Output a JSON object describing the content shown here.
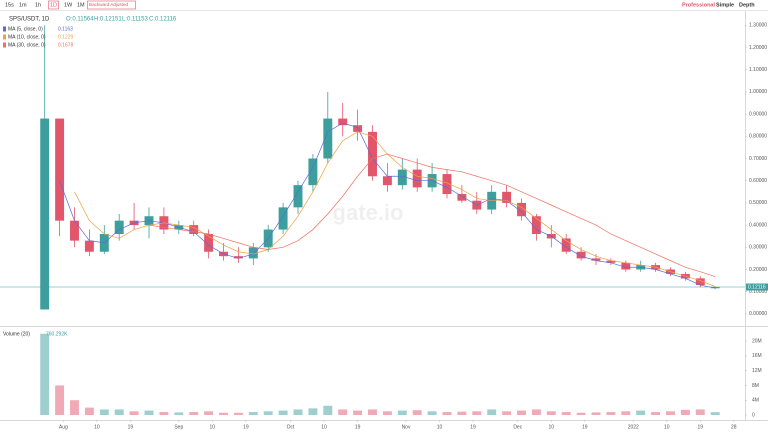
{
  "toolbar": {
    "intervals": [
      "15s",
      "1m",
      "1h",
      "1D",
      "1W",
      "1M"
    ],
    "adjust": "Backward Adjusted",
    "modes": [
      "Professional",
      "Simple",
      "Depth"
    ]
  },
  "chart_data": {
    "type": "candlestick",
    "title": "SPS/USDT, 1D",
    "ohlc_labels": [
      "O:0.11564",
      "H:0.12151",
      "L:0.11153",
      "C:0.12116"
    ],
    "watermark": "gate.io",
    "x": [
      0,
      4,
      8,
      12,
      16,
      20,
      24,
      28,
      32,
      36,
      40,
      44,
      48,
      52,
      56,
      60,
      64,
      68,
      72,
      76,
      80,
      84,
      88,
      92,
      96,
      100,
      104,
      108,
      112,
      116,
      120,
      124,
      128,
      132,
      136,
      140,
      144,
      148,
      152,
      156,
      160,
      164,
      168,
      172,
      176,
      180
    ],
    "open": [
      0.02,
      0.88,
      0.42,
      0.33,
      0.28,
      0.36,
      0.42,
      0.4,
      0.44,
      0.38,
      0.4,
      0.36,
      0.28,
      0.26,
      0.25,
      0.3,
      0.38,
      0.48,
      0.58,
      0.7,
      0.88,
      0.85,
      0.82,
      0.62,
      0.58,
      0.65,
      0.57,
      0.63,
      0.54,
      0.51,
      0.47,
      0.55,
      0.5,
      0.44,
      0.36,
      0.34,
      0.28,
      0.25,
      0.24,
      0.23,
      0.2,
      0.22,
      0.2,
      0.18,
      0.16,
      0.11564
    ],
    "high": [
      1.3,
      0.88,
      0.48,
      0.38,
      0.4,
      0.45,
      0.5,
      0.48,
      0.48,
      0.42,
      0.42,
      0.38,
      0.32,
      0.3,
      0.32,
      0.4,
      0.5,
      0.6,
      0.72,
      1.0,
      0.95,
      0.92,
      0.85,
      0.68,
      0.7,
      0.7,
      0.68,
      0.65,
      0.58,
      0.55,
      0.58,
      0.58,
      0.52,
      0.45,
      0.4,
      0.36,
      0.3,
      0.27,
      0.25,
      0.24,
      0.24,
      0.23,
      0.21,
      0.19,
      0.17,
      0.12151
    ],
    "low": [
      0.02,
      0.35,
      0.3,
      0.26,
      0.27,
      0.33,
      0.38,
      0.34,
      0.36,
      0.36,
      0.35,
      0.25,
      0.24,
      0.23,
      0.22,
      0.28,
      0.36,
      0.45,
      0.55,
      0.68,
      0.8,
      0.78,
      0.6,
      0.55,
      0.56,
      0.55,
      0.55,
      0.52,
      0.5,
      0.45,
      0.45,
      0.48,
      0.42,
      0.33,
      0.3,
      0.27,
      0.24,
      0.22,
      0.22,
      0.19,
      0.19,
      0.19,
      0.17,
      0.15,
      0.12,
      0.11153
    ],
    "close": [
      0.88,
      0.42,
      0.33,
      0.28,
      0.36,
      0.42,
      0.4,
      0.44,
      0.38,
      0.4,
      0.36,
      0.28,
      0.26,
      0.25,
      0.3,
      0.38,
      0.48,
      0.58,
      0.7,
      0.88,
      0.85,
      0.82,
      0.62,
      0.58,
      0.65,
      0.57,
      0.63,
      0.54,
      0.51,
      0.47,
      0.55,
      0.5,
      0.44,
      0.36,
      0.34,
      0.28,
      0.25,
      0.24,
      0.23,
      0.2,
      0.22,
      0.2,
      0.18,
      0.16,
      0.13,
      0.12116
    ],
    "up_color": "#3d9e9e",
    "down_color": "#e2566c",
    "ma": [
      {
        "name": "MA (5, close, 0)",
        "color": "#5b6bd6",
        "value_label": "0.1163",
        "values": [
          null,
          0.6,
          0.42,
          0.33,
          0.32,
          0.38,
          0.41,
          0.42,
          0.41,
          0.39,
          0.37,
          0.31,
          0.27,
          0.25,
          0.27,
          0.34,
          0.44,
          0.55,
          0.66,
          0.82,
          0.86,
          0.84,
          0.7,
          0.62,
          0.62,
          0.6,
          0.6,
          0.57,
          0.53,
          0.49,
          0.52,
          0.51,
          0.46,
          0.38,
          0.35,
          0.3,
          0.26,
          0.24,
          0.23,
          0.21,
          0.21,
          0.2,
          0.18,
          0.16,
          0.13,
          0.1163
        ]
      },
      {
        "name": "MA (10, close, 0)",
        "color": "#f0a040",
        "value_label": "0.1229",
        "values": [
          null,
          null,
          0.55,
          0.42,
          0.36,
          0.34,
          0.38,
          0.4,
          0.41,
          0.4,
          0.39,
          0.35,
          0.31,
          0.28,
          0.27,
          0.29,
          0.35,
          0.44,
          0.55,
          0.68,
          0.78,
          0.82,
          0.8,
          0.72,
          0.66,
          0.62,
          0.61,
          0.59,
          0.56,
          0.52,
          0.51,
          0.51,
          0.48,
          0.43,
          0.38,
          0.33,
          0.29,
          0.26,
          0.24,
          0.23,
          0.22,
          0.21,
          0.19,
          0.17,
          0.15,
          0.1229
        ]
      },
      {
        "name": "MA (30, close, 0)",
        "color": "#f07060",
        "value_label": "0.1678",
        "values": [
          null,
          null,
          null,
          null,
          null,
          null,
          null,
          0.4,
          0.39,
          0.38,
          0.37,
          0.36,
          0.34,
          0.32,
          0.3,
          0.29,
          0.3,
          0.33,
          0.38,
          0.45,
          0.53,
          0.62,
          0.7,
          0.72,
          0.7,
          0.68,
          0.66,
          0.65,
          0.64,
          0.62,
          0.6,
          0.58,
          0.55,
          0.52,
          0.49,
          0.46,
          0.43,
          0.4,
          0.36,
          0.33,
          0.3,
          0.27,
          0.24,
          0.21,
          0.19,
          0.1678
        ]
      }
    ],
    "last_price": {
      "value": 0.12116,
      "label": "0.12116"
    },
    "xlim": [
      -12,
      188
    ],
    "xticks": [
      {
        "value": 5,
        "label": "Aug"
      },
      {
        "value": 14,
        "label": "10"
      },
      {
        "value": 23,
        "label": "19"
      },
      {
        "value": 36,
        "label": "Sep"
      },
      {
        "value": 45,
        "label": "10"
      },
      {
        "value": 54,
        "label": "19"
      },
      {
        "value": 66,
        "label": "Oct"
      },
      {
        "value": 75,
        "label": "10"
      },
      {
        "value": 84,
        "label": "19"
      },
      {
        "value": 97,
        "label": "Nov"
      },
      {
        "value": 106,
        "label": "10"
      },
      {
        "value": 115,
        "label": "19"
      },
      {
        "value": 127,
        "label": "Dec"
      },
      {
        "value": 136,
        "label": "10"
      },
      {
        "value": 145,
        "label": "19"
      },
      {
        "value": 158,
        "label": "2022"
      },
      {
        "value": 167,
        "label": "10"
      },
      {
        "value": 176,
        "label": "19"
      },
      {
        "value": 185,
        "label": "28"
      }
    ],
    "ylim": [
      -0.05,
      1.36
    ],
    "yticks": [
      {
        "value": 0,
        "label": "0.00000"
      },
      {
        "value": 0.1,
        "label": "0.10000"
      },
      {
        "value": 0.2,
        "label": "0.20000"
      },
      {
        "value": 0.3,
        "label": "0.30000"
      },
      {
        "value": 0.4,
        "label": "0.40000"
      },
      {
        "value": 0.5,
        "label": "0.50000"
      },
      {
        "value": 0.6,
        "label": "0.60000"
      },
      {
        "value": 0.7,
        "label": "0.70000"
      },
      {
        "value": 0.8,
        "label": "0.80000"
      },
      {
        "value": 0.9,
        "label": "0.90000"
      },
      {
        "value": 1.0,
        "label": "1.00000"
      },
      {
        "value": 1.1,
        "label": "1.10000"
      },
      {
        "value": 1.2,
        "label": "1.20000"
      },
      {
        "value": 1.3,
        "label": "1.30000"
      }
    ],
    "volume": {
      "title": "Volume (20)",
      "value_label": "760.292K",
      "values": [
        22000000,
        8000000,
        4000000,
        2000000,
        1500000,
        1500000,
        1000000,
        1200000,
        800000,
        700000,
        800000,
        1000000,
        600000,
        600000,
        800000,
        1000000,
        1200000,
        1500000,
        1800000,
        2500000,
        1500000,
        1200000,
        1500000,
        1000000,
        1200000,
        1300000,
        1000000,
        800000,
        900000,
        1000000,
        1500000,
        1000000,
        1200000,
        1500000,
        1000000,
        800000,
        600000,
        700000,
        800000,
        1000000,
        1200000,
        800000,
        1000000,
        1400000,
        1500000,
        760292
      ],
      "ylim": [
        0,
        23000000
      ],
      "yticks": [
        0,
        {
          "value": 4000000,
          "label": "4M"
        },
        {
          "value": 8000000,
          "label": "8M"
        },
        {
          "value": 12000000,
          "label": "12M"
        },
        {
          "value": 16000000,
          "label": "16M"
        },
        {
          "value": 20000000,
          "label": "20M"
        }
      ]
    }
  }
}
